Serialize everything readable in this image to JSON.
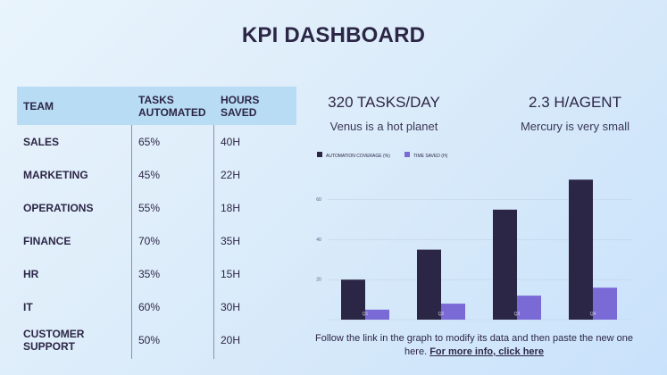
{
  "title": "KPI DASHBOARD",
  "table": {
    "headers": [
      "TEAM",
      "TASKS AUTOMATED",
      "HOURS SAVED"
    ],
    "rows": [
      {
        "team": "SALES",
        "tasks": "65%",
        "hours": "40H"
      },
      {
        "team": "MARKETING",
        "tasks": "45%",
        "hours": "22H"
      },
      {
        "team": "OPERATIONS",
        "tasks": "55%",
        "hours": "18H"
      },
      {
        "team": "FINANCE",
        "tasks": "70%",
        "hours": "35H"
      },
      {
        "team": "HR",
        "tasks": "35%",
        "hours": "15H"
      },
      {
        "team": "IT",
        "tasks": "60%",
        "hours": "30H"
      },
      {
        "team": "CUSTOMER SUPPORT",
        "tasks": "50%",
        "hours": "20H"
      }
    ]
  },
  "kpis": [
    {
      "value": "320 TASKS/DAY",
      "caption": "Venus is a hot planet"
    },
    {
      "value": "2.3 H/AGENT",
      "caption": "Mercury is very small"
    }
  ],
  "note": {
    "text": "Follow the link in the graph to modify its data and then paste the new one here.",
    "link": "For more info, click here"
  },
  "colors": {
    "series1": "#2c2646",
    "series2": "#7a6ad6",
    "header_bg": "#b9dcf5"
  },
  "chart_data": {
    "type": "bar",
    "categories": [
      "Q1",
      "Q2",
      "Q3",
      "Q4"
    ],
    "series": [
      {
        "name": "AUTOMATION COVERAGE (%)",
        "values": [
          20,
          35,
          55,
          70
        ]
      },
      {
        "name": "TIME SAVED (H)",
        "values": [
          5,
          8,
          12,
          16
        ]
      }
    ],
    "yticks": [
      20,
      40,
      60
    ],
    "ylim": [
      0,
      75
    ],
    "legend": "top-left",
    "grid": true
  }
}
